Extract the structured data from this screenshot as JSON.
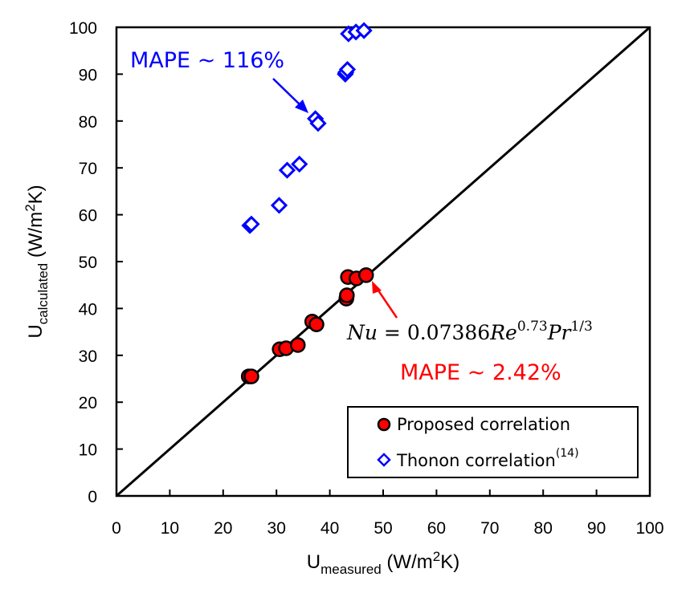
{
  "chart_data": {
    "type": "scatter",
    "title": "",
    "xlabel": "U",
    "xlabel_sub": "measured",
    "xlabel_unit_pre": " (W/m",
    "xlabel_unit_sup": "2",
    "xlabel_unit_post": "K)",
    "ylabel": "U",
    "ylabel_sub": "calculated",
    "ylabel_unit_pre": " (W/m",
    "ylabel_unit_sup": "2",
    "ylabel_unit_post": "K)",
    "xlim": [
      0,
      100
    ],
    "ylim": [
      0,
      100
    ],
    "xticks": [
      "0",
      "10",
      "20",
      "30",
      "40",
      "50",
      "60",
      "70",
      "80",
      "90",
      "100"
    ],
    "yticks": [
      "0",
      "10",
      "20",
      "30",
      "40",
      "50",
      "60",
      "70",
      "80",
      "90",
      "100"
    ],
    "grid": false,
    "reference_line": {
      "name": "y = x",
      "from": [
        0,
        0
      ],
      "to": [
        100,
        100
      ],
      "color": "#000000"
    },
    "series": [
      {
        "name": "Proposed correlation",
        "marker": "circle",
        "fill": "#ff0000",
        "stroke": "#000000",
        "points": [
          [
            24.8,
            25.5
          ],
          [
            25.3,
            25.5
          ],
          [
            30.6,
            31.3
          ],
          [
            31.8,
            31.5
          ],
          [
            34.0,
            32.2
          ],
          [
            36.7,
            37.2
          ],
          [
            37.5,
            36.6
          ],
          [
            43.1,
            42.1
          ],
          [
            43.2,
            42.8
          ],
          [
            43.4,
            46.7
          ],
          [
            45.0,
            46.4
          ],
          [
            46.8,
            47.1
          ]
        ]
      },
      {
        "name": "Thonon correlation",
        "name_sup": "(14)",
        "marker": "diamond",
        "fill": "#ffffff",
        "stroke": "#0000ff",
        "points": [
          [
            25.0,
            57.7
          ],
          [
            25.3,
            58.0
          ],
          [
            30.5,
            62.0
          ],
          [
            32.0,
            69.5
          ],
          [
            34.3,
            70.8
          ],
          [
            37.3,
            80.5
          ],
          [
            37.8,
            79.5
          ],
          [
            42.9,
            90.0
          ],
          [
            43.0,
            90.4
          ],
          [
            43.3,
            91.0
          ],
          [
            43.5,
            98.6
          ],
          [
            44.9,
            99.0
          ],
          [
            46.4,
            99.3
          ]
        ]
      }
    ],
    "legend": {
      "placement": "bottom-right",
      "entries": [
        {
          "label": "Proposed correlation",
          "sup": ""
        },
        {
          "label": "Thonon correlation",
          "sup": "(14)"
        }
      ]
    },
    "annotations": [
      {
        "id": "mape-thonon",
        "text": "MAPE ~ 116%",
        "color": "#0000ff",
        "arrow_to": [
          36.3,
          80.6
        ]
      },
      {
        "id": "equation",
        "parts": [
          "Nu",
          " = 0.07386",
          "Re",
          "0.73",
          "Pr",
          "1/3"
        ]
      },
      {
        "id": "mape-proposed",
        "text": "MAPE ~ 2.42%",
        "color": "#ff0000",
        "arrow_to": [
          47.9,
          45.5
        ]
      }
    ]
  }
}
